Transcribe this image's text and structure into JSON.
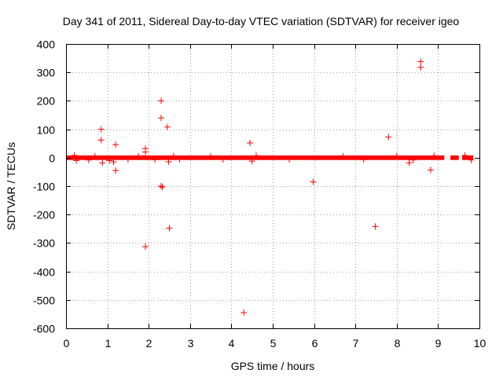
{
  "chart_data": {
    "type": "scatter",
    "title": "Day 341 of 2011, Sidereal Day-to-day VTEC variation (SDTVAR) for receiver igeo",
    "xlabel": "GPS time / hours",
    "ylabel": "SDTVAR / TECUs",
    "xlim": [
      0,
      10
    ],
    "ylim": [
      -600,
      400
    ],
    "xticks": [
      0,
      1,
      2,
      3,
      4,
      5,
      6,
      7,
      8,
      9,
      10
    ],
    "yticks": [
      400,
      300,
      200,
      100,
      0,
      -100,
      -200,
      -300,
      -400,
      -500,
      -600
    ],
    "xtick_labels": [
      "0",
      "1",
      "2",
      "3",
      "4",
      "5",
      "6",
      "7",
      "8",
      "9",
      "10"
    ],
    "ytick_labels": [
      "400",
      "300",
      "200",
      "100",
      "0",
      "-100",
      "-200",
      "-300",
      "-400",
      "-500",
      "-600"
    ],
    "grid": true,
    "marker": "+",
    "color": "#ff0000",
    "dense_band": {
      "x_start": 0.0,
      "x_end": 9.85,
      "gaps": [
        [
          9.15,
          9.3
        ],
        [
          9.5,
          9.58
        ]
      ],
      "y_min": -8,
      "y_max": 8
    },
    "series": [
      {
        "name": "SDTVAR",
        "points": [
          [
            0.85,
            100
          ],
          [
            0.85,
            62
          ],
          [
            0.88,
            -18
          ],
          [
            1.2,
            46
          ],
          [
            1.2,
            -45
          ],
          [
            1.15,
            -15
          ],
          [
            1.92,
            32
          ],
          [
            1.92,
            20
          ],
          [
            1.92,
            -313
          ],
          [
            2.3,
            200
          ],
          [
            2.3,
            140
          ],
          [
            2.3,
            -100
          ],
          [
            2.33,
            -103
          ],
          [
            2.45,
            108
          ],
          [
            2.48,
            -14
          ],
          [
            2.5,
            -248
          ],
          [
            4.3,
            -545
          ],
          [
            4.45,
            52
          ],
          [
            4.5,
            -12
          ],
          [
            5.98,
            -85
          ],
          [
            7.48,
            -242
          ],
          [
            7.8,
            73
          ],
          [
            8.3,
            -18
          ],
          [
            8.58,
            338
          ],
          [
            8.58,
            318
          ],
          [
            8.82,
            -43
          ],
          [
            0.2,
            8
          ],
          [
            0.25,
            -10
          ],
          [
            0.55,
            -8
          ],
          [
            0.7,
            6
          ],
          [
            1.05,
            -10
          ],
          [
            1.5,
            -6
          ],
          [
            1.75,
            5
          ],
          [
            2.15,
            -7
          ],
          [
            2.6,
            6
          ],
          [
            2.75,
            -6
          ],
          [
            3.5,
            5
          ],
          [
            3.8,
            -6
          ],
          [
            4.6,
            7
          ],
          [
            5.4,
            -6
          ],
          [
            6.7,
            5
          ],
          [
            7.2,
            -7
          ],
          [
            8.0,
            6
          ],
          [
            8.4,
            -8
          ],
          [
            8.9,
            7
          ],
          [
            9.65,
            8
          ],
          [
            9.8,
            -8
          ]
        ]
      }
    ]
  }
}
